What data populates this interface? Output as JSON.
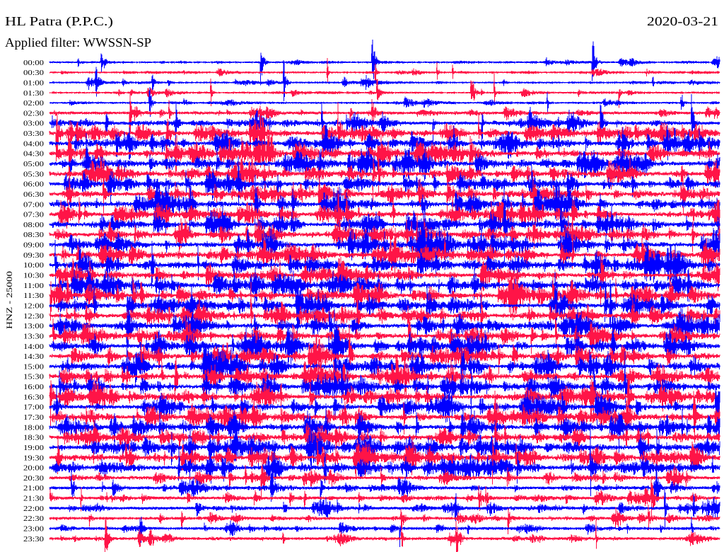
{
  "chart_data": {
    "type": "line",
    "title": "HL Patra (P.P.C.)",
    "date": "2020-03-21",
    "subtitle": "Applied filter: WWSSN-SP",
    "ylabel": "HNZ - 25000",
    "row_labels": [
      "00:00",
      "00:30",
      "01:00",
      "01:30",
      "02:00",
      "02:30",
      "03:00",
      "03:30",
      "04:00",
      "04:30",
      "05:00",
      "05:30",
      "06:00",
      "06:30",
      "07:00",
      "07:30",
      "08:00",
      "08:30",
      "09:00",
      "09:30",
      "10:00",
      "10:30",
      "11:00",
      "11:30",
      "12:00",
      "12:30",
      "13:00",
      "13:30",
      "14:00",
      "14:30",
      "15:00",
      "15:30",
      "16:00",
      "16:30",
      "17:00",
      "17:30",
      "18:00",
      "18:30",
      "19:00",
      "19:30",
      "20:00",
      "20:30",
      "21:00",
      "21:30",
      "22:00",
      "22:30",
      "23:00",
      "23:30"
    ],
    "trace_colors": [
      "#0000ff",
      "#ff1447"
    ],
    "background": "#ffffff",
    "grid": false
  }
}
